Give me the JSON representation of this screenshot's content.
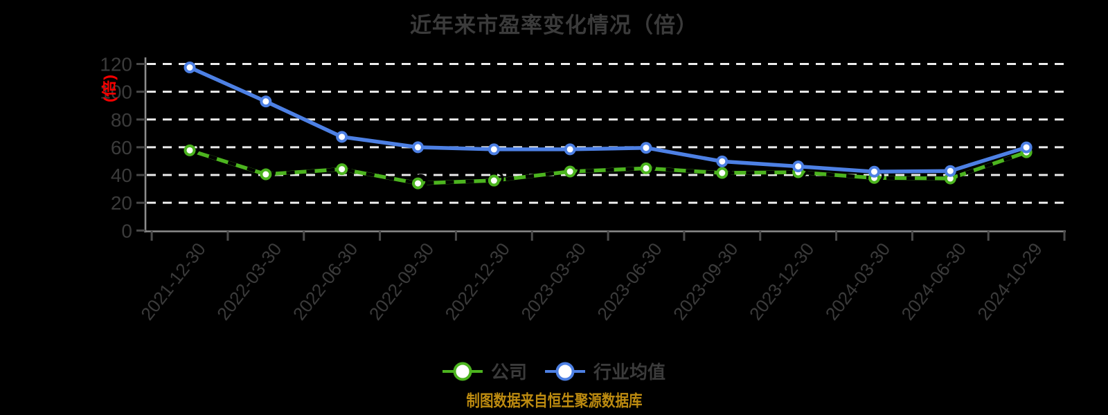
{
  "colors": {
    "background": "#000000",
    "text_gray": "#3b3b3b",
    "axis": "#8c8c8c",
    "tick": "#4b4b4b",
    "grid": "#ededed",
    "company_green": "#4cb41f",
    "industry_blue": "#4d80e4",
    "unit_red": "#f40000",
    "footer_orange": "#bd8b10",
    "marker_fill": "#ffffff"
  },
  "chart_data": {
    "type": "line",
    "title": "近年来市盈率变化情况（倍）",
    "y_unit_label": "(倍)",
    "footer": "制图数据来自恒生聚源数据库",
    "categories": [
      "2021-12-30",
      "2022-03-30",
      "2022-06-30",
      "2022-09-30",
      "2022-12-30",
      "2023-03-30",
      "2023-06-30",
      "2023-09-30",
      "2023-12-30",
      "2024-03-30",
      "2024-06-30",
      "2024-10-29"
    ],
    "series": [
      {
        "name": "公司",
        "color": "#4cb41f",
        "values": [
          57.8,
          40.5,
          44.2,
          34.0,
          36.0,
          42.5,
          44.8,
          41.5,
          42.0,
          37.9,
          37.5,
          56.4
        ]
      },
      {
        "name": "行业均值",
        "color": "#4d80e4",
        "values": [
          117.5,
          93.0,
          67.5,
          60.0,
          58.5,
          58.5,
          59.6,
          49.8,
          46.2,
          42.4,
          42.9,
          59.9
        ]
      }
    ],
    "ylim": [
      0,
      120
    ],
    "ytick_step": 20,
    "yticks": [
      0,
      20,
      40,
      60,
      80,
      100,
      120
    ],
    "grid": "horizontal-dashed",
    "legend_position": "bottom-center",
    "x_label_rotation_deg": -52
  }
}
